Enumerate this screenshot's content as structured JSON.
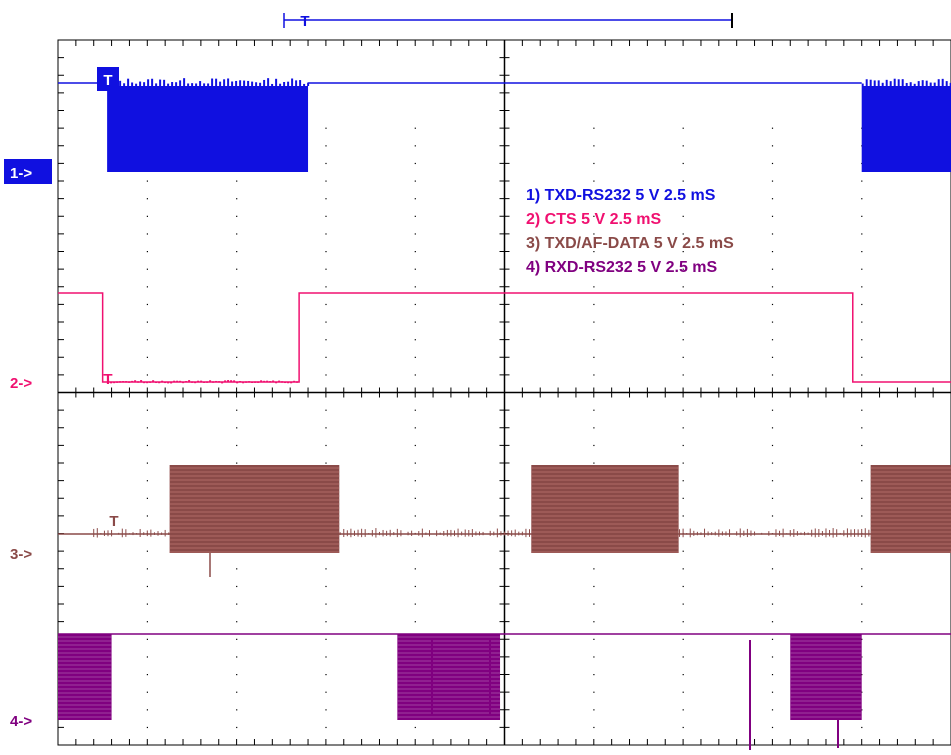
{
  "chart_data": {
    "type": "line",
    "title": "",
    "xlabel": "",
    "ylabel": "",
    "grid": true,
    "trigger_marker": "T",
    "legend": [
      {
        "text": "1) TXD-RS232  5  V   2.5 mS",
        "color": "#1010e0"
      },
      {
        "text": "2) CTS  5  V   2.5 mS",
        "color": "#f01070"
      },
      {
        "text": "3) TXD/AF-DATA  5  V   2.5 mS",
        "color": "#8a4a48"
      },
      {
        "text": "4) RXD-RS232  5  V   2.5 mS",
        "color": "#800080"
      }
    ],
    "channel_markers": [
      {
        "label": "1->",
        "color": "#1010e0",
        "boxed": true
      },
      {
        "label": "2->",
        "color": "#f01070",
        "boxed": false
      },
      {
        "label": "3->",
        "color": "#8a4a48",
        "boxed": false
      },
      {
        "label": "4->",
        "color": "#800080",
        "boxed": false
      }
    ],
    "series": [
      {
        "name": "1) TXD-RS232  5  V   2.5 mS",
        "color": "#1010e0",
        "kind": "digital",
        "idle": "high",
        "bursts": [
          [
            0.55,
            2.8
          ],
          [
            9.0,
            10.0
          ]
        ]
      },
      {
        "name": "2) CTS  5  V   2.5 mS",
        "color": "#f01070",
        "kind": "digital",
        "steps": [
          [
            0,
            1
          ],
          [
            0.5,
            0
          ],
          [
            2.7,
            1
          ],
          [
            8.9,
            0
          ],
          [
            10,
            0
          ]
        ]
      },
      {
        "name": "3) TXD/AF-DATA  5  V   2.5 mS",
        "color": "#8a4a48",
        "kind": "analog",
        "bursts": [
          [
            1.25,
            3.15
          ],
          [
            5.3,
            6.95
          ],
          [
            9.1,
            10.0
          ]
        ]
      },
      {
        "name": "4) RXD-RS232  5  V   2.5 mS",
        "color": "#800080",
        "kind": "digital",
        "idle": "high",
        "bursts": [
          [
            0.0,
            0.6
          ],
          [
            3.8,
            4.95
          ],
          [
            8.2,
            9.0
          ]
        ]
      }
    ]
  }
}
